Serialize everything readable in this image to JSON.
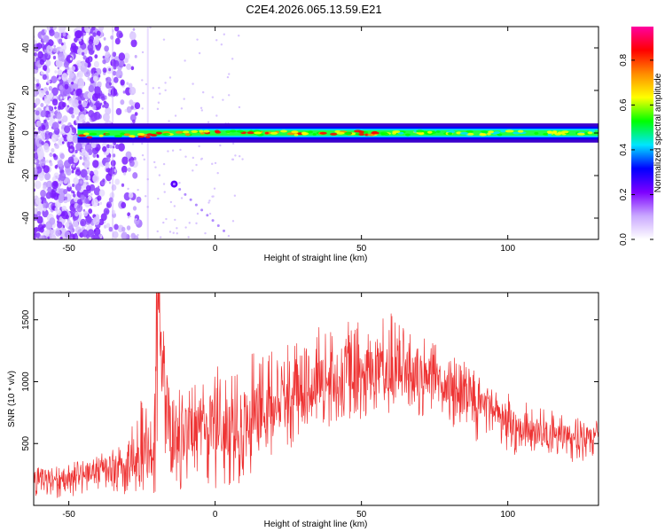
{
  "title": "C2E4.2026.065.13.59.E21",
  "chart_data": [
    {
      "type": "heatmap",
      "xlabel": "Height of straight line (km)",
      "ylabel": "Frequency (Hz)",
      "xlim": [
        -62,
        131
      ],
      "ylim": [
        -50,
        50
      ],
      "xticks": [
        -50,
        0,
        50,
        100
      ],
      "yticks": [
        -40,
        -20,
        0,
        20,
        40
      ],
      "colorbar": {
        "label": "Normalized spectral amplitude",
        "range": [
          0,
          0.95
        ],
        "ticks": [
          0.0,
          0.2,
          0.4,
          0.6,
          0.8
        ],
        "tick_labels": [
          "0.0",
          "0.2",
          "0.4",
          "0.6",
          "0.8"
        ],
        "colors": [
          "#ffffff",
          "#c9a8ff",
          "#7d00ff",
          "#0000ff",
          "#00e5ff",
          "#00ff00",
          "#ffff00",
          "#ff8c00",
          "#ff0000",
          "#ff00a0"
        ]
      },
      "features": {
        "carrier_frequency_hz": 0,
        "carrier_start_km": -47,
        "carrier_end_km": 131,
        "carrier_width_hz": [
          6,
          9
        ],
        "noise_region_km": [
          -62,
          -30
        ],
        "secondary_trace": {
          "start_km": -14,
          "start_hz": -24,
          "end_km": 3,
          "end_hz": -46
        }
      }
    },
    {
      "type": "line",
      "xlabel": "Height of straight line (km)",
      "ylabel": "SNR (10 * v/v)",
      "xlim": [
        -62,
        131
      ],
      "ylim": [
        0,
        1720
      ],
      "xticks": [
        -50,
        0,
        50,
        100
      ],
      "yticks": [
        500,
        1000,
        1500
      ],
      "series": [
        {
          "name": "SNR",
          "color": "#ee3333",
          "x": [
            -62,
            -55,
            -50,
            -45,
            -40,
            -35,
            -30,
            -25,
            -21,
            -20,
            -15,
            -10,
            -5,
            0,
            5,
            10,
            15,
            20,
            25,
            30,
            35,
            40,
            45,
            50,
            55,
            60,
            65,
            70,
            75,
            80,
            85,
            90,
            95,
            100,
            105,
            110,
            115,
            120,
            125,
            131
          ],
          "values": [
            230,
            210,
            220,
            260,
            280,
            320,
            330,
            380,
            380,
            1720,
            520,
            580,
            620,
            660,
            600,
            680,
            760,
            800,
            870,
            920,
            1000,
            1050,
            1080,
            1100,
            1060,
            1100,
            1080,
            1050,
            1000,
            950,
            900,
            850,
            780,
            700,
            650,
            600,
            580,
            560,
            550,
            560
          ],
          "upper_envelope": [
            300,
            320,
            330,
            390,
            420,
            470,
            520,
            900,
            600,
            1720,
            900,
            1000,
            1100,
            1150,
            1050,
            1200,
            1250,
            1260,
            1300,
            1380,
            1450,
            1480,
            1500,
            1520,
            1480,
            1600,
            1450,
            1400,
            1350,
            1250,
            1200,
            1100,
            1000,
            950,
            850,
            800,
            780,
            720,
            700,
            700
          ],
          "lower_envelope": [
            70,
            60,
            70,
            90,
            110,
            120,
            60,
            90,
            80,
            120,
            80,
            150,
            200,
            120,
            30,
            200,
            320,
            420,
            450,
            500,
            600,
            650,
            700,
            680,
            700,
            750,
            720,
            700,
            680,
            650,
            550,
            500,
            450,
            420,
            400,
            380,
            360,
            350,
            360,
            380
          ]
        }
      ]
    }
  ]
}
